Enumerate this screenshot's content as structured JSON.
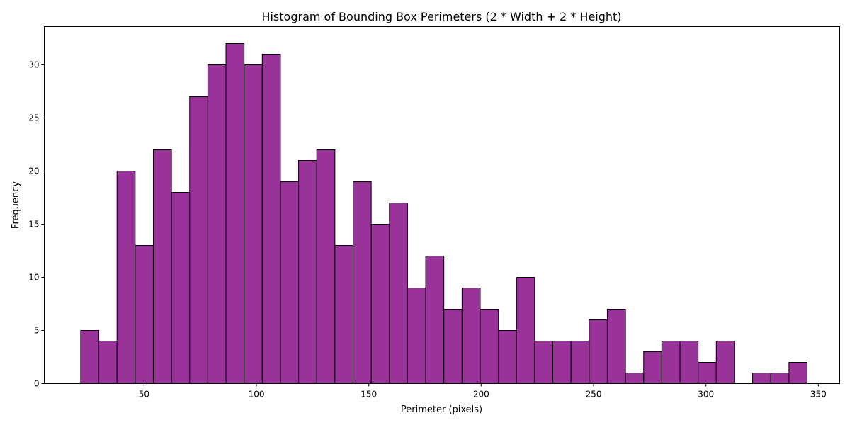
{
  "chart_data": {
    "type": "bar",
    "title": "Histogram of Bounding Box Perimeters (2 * Width + 2 * Height)",
    "xlabel": "Perimeter (pixels)",
    "ylabel": "Frequency",
    "bin_start": 21.8,
    "bin_width": 8.08,
    "values": [
      5,
      4,
      20,
      13,
      22,
      18,
      27,
      30,
      32,
      30,
      31,
      19,
      21,
      22,
      13,
      19,
      15,
      17,
      9,
      12,
      7,
      9,
      7,
      5,
      10,
      4,
      4,
      4,
      6,
      7,
      1,
      3,
      4,
      4,
      2,
      4,
      0,
      1,
      1,
      2
    ],
    "xlim": [
      5.6,
      359.5
    ],
    "ylim": [
      0,
      33.6
    ],
    "xticks": [
      50,
      100,
      150,
      200,
      250,
      300,
      350
    ],
    "yticks": [
      0,
      5,
      10,
      15,
      20,
      25,
      30
    ],
    "bar_color": "#800080",
    "bar_opacity": 0.8,
    "edge_color": "#000000",
    "grid": false,
    "legend": false
  }
}
